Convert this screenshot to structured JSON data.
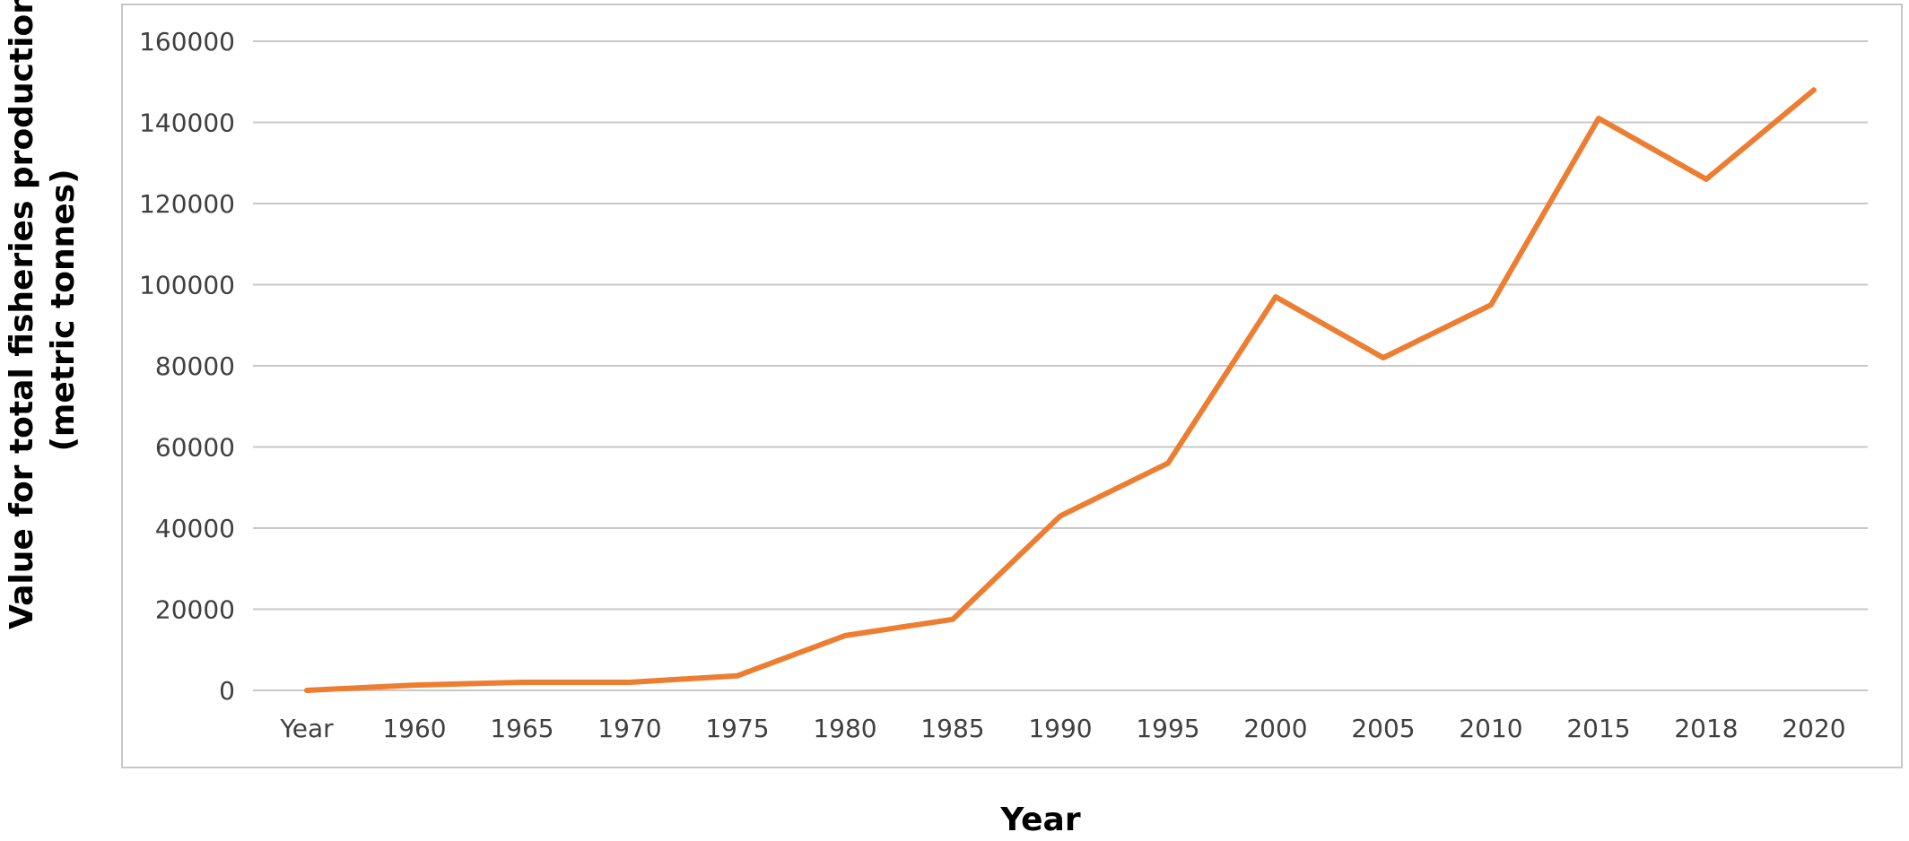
{
  "chart_data": {
    "type": "line",
    "title": "",
    "xlabel": "Year",
    "ylabel_line1": "Value for total fisheries production",
    "ylabel_line2": "(metric tonnes)",
    "categories": [
      "Year",
      "1960",
      "1965",
      "1970",
      "1975",
      "1980",
      "1985",
      "1990",
      "1995",
      "2000",
      "2005",
      "2010",
      "2015",
      "2018",
      "2020"
    ],
    "series": [
      {
        "values": [
          0,
          1300,
          2000,
          2000,
          3600,
          13500,
          17500,
          43000,
          56000,
          97000,
          82000,
          95000,
          141000,
          126000,
          148000
        ]
      }
    ],
    "ylim": [
      0,
      160000
    ],
    "yticks": [
      "0",
      "20000",
      "40000",
      "60000",
      "80000",
      "100000",
      "120000",
      "140000",
      "160000"
    ],
    "grid": true,
    "legend": "none",
    "colors": {
      "line": "#ed7d31",
      "grid": "#c8c8c8",
      "frame": "#c8c8c8",
      "tick_text": "#404040"
    }
  }
}
